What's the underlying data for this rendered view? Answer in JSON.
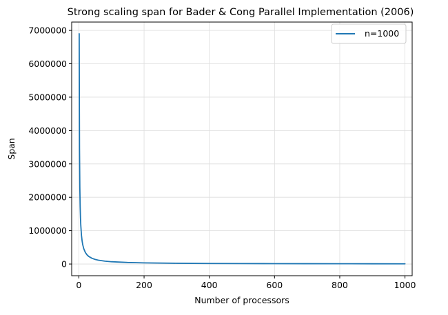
{
  "chart_data": {
    "type": "line",
    "title": "Strong scaling span for Bader & Cong Parallel Implementation  (2006)",
    "xlabel": "Number of processors",
    "ylabel": "Span",
    "xlim": [
      -22,
      1022
    ],
    "ylim": [
      -350000,
      7250000
    ],
    "xticks": [
      0,
      200,
      400,
      600,
      800,
      1000
    ],
    "xtick_labels": [
      "0",
      "200",
      "400",
      "600",
      "800",
      "1000"
    ],
    "yticks": [
      0,
      1000000,
      2000000,
      3000000,
      4000000,
      5000000,
      6000000,
      7000000
    ],
    "ytick_labels": [
      "0",
      "1000000",
      "2000000",
      "3000000",
      "4000000",
      "5000000",
      "6000000",
      "7000000"
    ],
    "grid": true,
    "legend_position": "top-right",
    "series": [
      {
        "name": "n=1000",
        "color": "#1f77b4",
        "x": [
          1,
          2,
          3,
          4,
          5,
          6,
          8,
          10,
          12,
          15,
          20,
          25,
          30,
          40,
          50,
          60,
          80,
          100,
          150,
          200,
          300,
          400,
          500,
          600,
          700,
          800,
          900,
          1000
        ],
        "y": [
          6900000,
          3450000,
          2300000,
          1725000,
          1380000,
          1150000,
          862500,
          690000,
          575000,
          460000,
          345000,
          276000,
          230000,
          172500,
          138000,
          115000,
          86250,
          69000,
          46000,
          34500,
          23000,
          17250,
          13800,
          11500,
          9857,
          8625,
          7667,
          6900
        ]
      }
    ]
  }
}
